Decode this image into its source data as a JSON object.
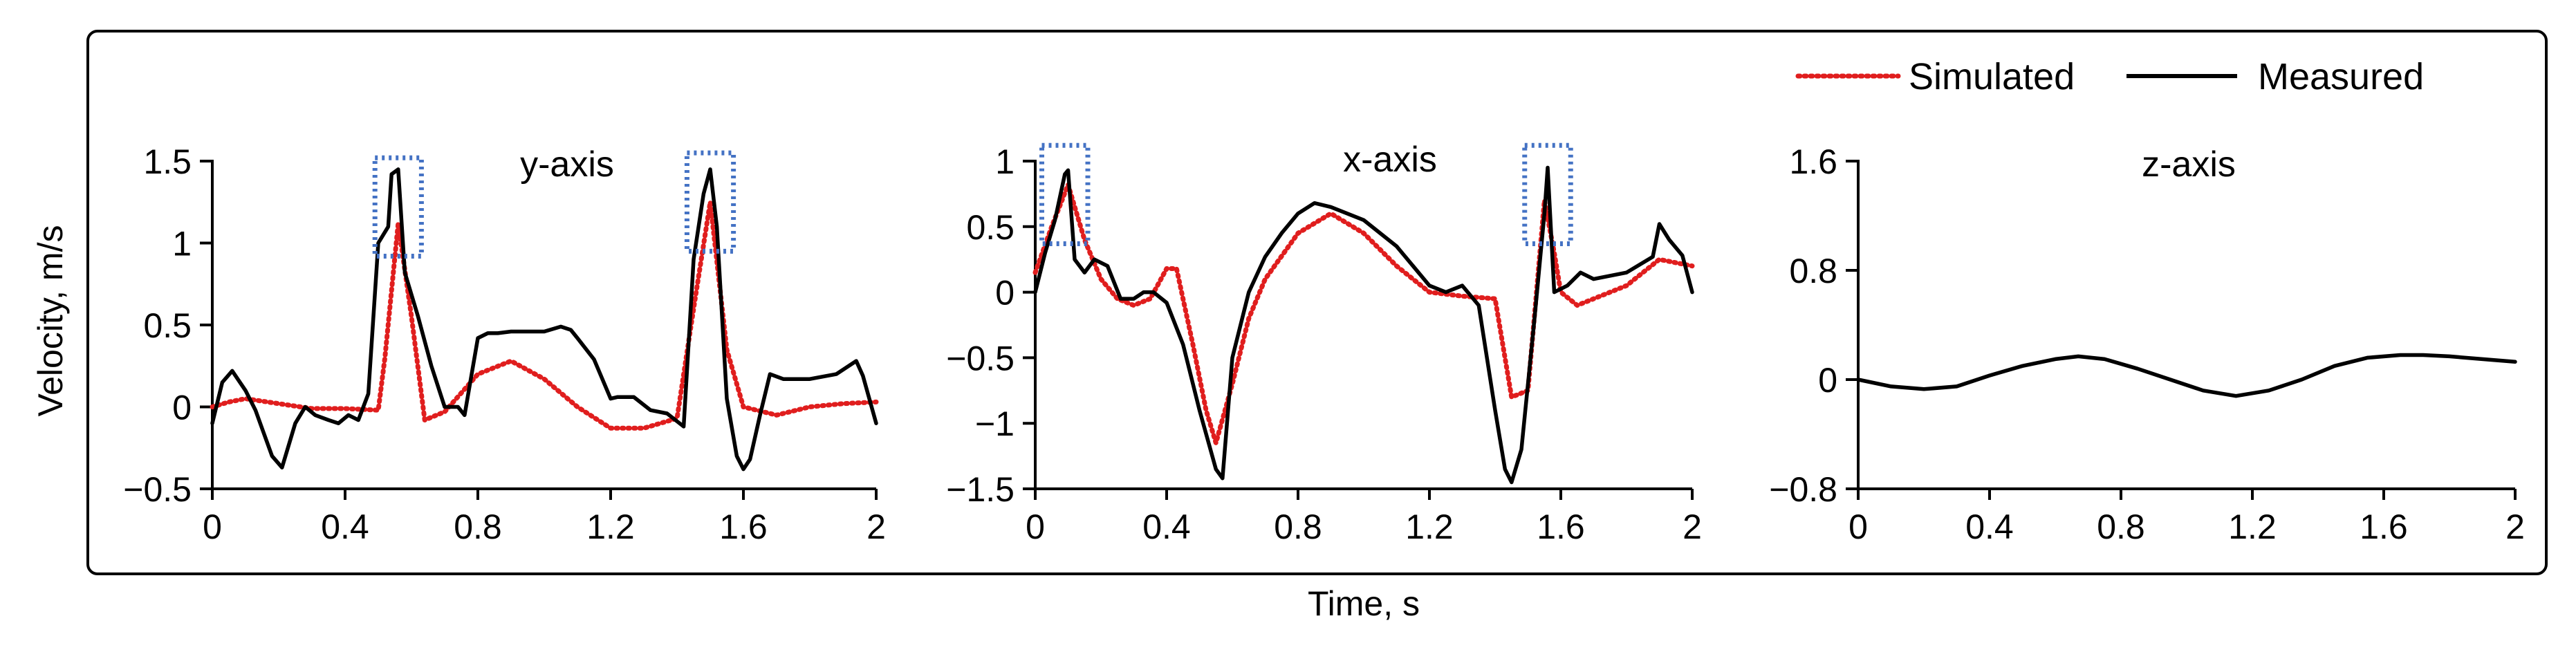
{
  "legend": {
    "simulated_label": "Simulated",
    "measured_label": "Measured"
  },
  "colors": {
    "simulated": "#e01e1e",
    "measured": "#000000",
    "highlight_box": "#4472c4",
    "frame": "#000000"
  },
  "xlabel": "Time, s",
  "ylabel": "Velocity, m/s",
  "chart_data": [
    {
      "type": "line",
      "title": "y-axis",
      "xlim": [
        0,
        2
      ],
      "ylim": [
        -0.5,
        1.5
      ],
      "xticks": [
        0,
        0.4,
        0.8,
        1.2,
        1.6,
        2
      ],
      "xticklabels": [
        "0",
        "0.4",
        "0.8",
        "1.2",
        "1.6",
        "2"
      ],
      "yticks": [
        -0.5,
        0,
        0.5,
        1,
        1.5
      ],
      "yticklabels": [
        "−0.5",
        "0",
        "0.5",
        "1",
        "1.5"
      ],
      "highlight_regions": [
        {
          "x": [
            0.49,
            0.63
          ],
          "y": [
            0.92,
            1.52
          ]
        },
        {
          "x": [
            1.43,
            1.57
          ],
          "y": [
            0.95,
            1.55
          ]
        }
      ],
      "series": [
        {
          "name": "Simulated",
          "style": "dotted",
          "x": [
            0,
            0.05,
            0.1,
            0.2,
            0.3,
            0.4,
            0.5,
            0.52,
            0.56,
            0.6,
            0.64,
            0.7,
            0.8,
            0.9,
            1.0,
            1.1,
            1.2,
            1.3,
            1.4,
            1.45,
            1.5,
            1.55,
            1.6,
            1.7,
            1.8,
            1.9,
            2.0
          ],
          "y": [
            0.0,
            0.03,
            0.05,
            0.02,
            -0.01,
            -0.01,
            -0.02,
            0.3,
            1.12,
            0.55,
            -0.08,
            -0.03,
            0.2,
            0.28,
            0.17,
            0.0,
            -0.13,
            -0.13,
            -0.07,
            0.6,
            1.25,
            0.35,
            0.0,
            -0.05,
            0.0,
            0.02,
            0.03
          ]
        },
        {
          "name": "Measured",
          "style": "solid",
          "x": [
            0,
            0.03,
            0.06,
            0.1,
            0.13,
            0.18,
            0.21,
            0.25,
            0.28,
            0.31,
            0.35,
            0.38,
            0.41,
            0.44,
            0.47,
            0.5,
            0.53,
            0.54,
            0.56,
            0.58,
            0.62,
            0.66,
            0.7,
            0.74,
            0.76,
            0.8,
            0.83,
            0.86,
            0.9,
            1.0,
            1.05,
            1.08,
            1.1,
            1.15,
            1.2,
            1.22,
            1.27,
            1.32,
            1.37,
            1.42,
            1.45,
            1.48,
            1.5,
            1.52,
            1.55,
            1.58,
            1.6,
            1.62,
            1.65,
            1.68,
            1.72,
            1.8,
            1.88,
            1.94,
            1.96,
            2.0
          ],
          "y": [
            -0.1,
            0.15,
            0.22,
            0.1,
            -0.02,
            -0.3,
            -0.37,
            -0.1,
            0.0,
            -0.05,
            -0.08,
            -0.1,
            -0.05,
            -0.08,
            0.08,
            1.0,
            1.1,
            1.42,
            1.45,
            0.82,
            0.55,
            0.25,
            0.0,
            0.0,
            -0.05,
            0.42,
            0.45,
            0.45,
            0.46,
            0.46,
            0.49,
            0.47,
            0.42,
            0.29,
            0.05,
            0.06,
            0.06,
            -0.02,
            -0.04,
            -0.12,
            0.9,
            1.3,
            1.45,
            1.1,
            0.05,
            -0.3,
            -0.38,
            -0.32,
            -0.05,
            0.2,
            0.17,
            0.17,
            0.2,
            0.28,
            0.19,
            -0.1
          ]
        }
      ]
    },
    {
      "type": "line",
      "title": "x-axis",
      "xlim": [
        0,
        2
      ],
      "ylim": [
        -1.5,
        1
      ],
      "xticks": [
        0,
        0.4,
        0.8,
        1.2,
        1.6,
        2
      ],
      "xticklabels": [
        "0",
        "0.4",
        "0.8",
        "1.2",
        "1.6",
        "2"
      ],
      "yticks": [
        -1.5,
        -1,
        -0.5,
        0,
        0.5,
        1
      ],
      "yticklabels": [
        "−1.5",
        "−1",
        "−0.5",
        "0",
        "0.5",
        "1"
      ],
      "highlight_regions": [
        {
          "x": [
            0.02,
            0.16
          ],
          "y": [
            0.37,
            1.12
          ]
        },
        {
          "x": [
            1.49,
            1.63
          ],
          "y": [
            0.37,
            1.12
          ]
        }
      ],
      "series": [
        {
          "name": "Simulated",
          "style": "dotted",
          "x": [
            0,
            0.05,
            0.1,
            0.15,
            0.2,
            0.25,
            0.3,
            0.35,
            0.4,
            0.43,
            0.48,
            0.52,
            0.55,
            0.6,
            0.65,
            0.7,
            0.8,
            0.9,
            1.0,
            1.1,
            1.2,
            1.3,
            1.4,
            1.45,
            1.5,
            1.55,
            1.58,
            1.6,
            1.65,
            1.7,
            1.8,
            1.9,
            2.0
          ],
          "y": [
            0.15,
            0.5,
            0.82,
            0.4,
            0.1,
            -0.05,
            -0.1,
            -0.05,
            0.18,
            0.18,
            -0.4,
            -0.9,
            -1.15,
            -0.7,
            -0.2,
            0.1,
            0.45,
            0.6,
            0.45,
            0.2,
            0.0,
            -0.03,
            -0.05,
            -0.8,
            -0.75,
            0.7,
            0.3,
            0.0,
            -0.1,
            -0.05,
            0.05,
            0.25,
            0.2
          ]
        },
        {
          "name": "Measured",
          "style": "solid",
          "x": [
            0,
            0.03,
            0.06,
            0.09,
            0.1,
            0.12,
            0.15,
            0.18,
            0.22,
            0.26,
            0.3,
            0.33,
            0.36,
            0.4,
            0.45,
            0.5,
            0.55,
            0.57,
            0.6,
            0.65,
            0.7,
            0.75,
            0.8,
            0.85,
            0.9,
            1.0,
            1.1,
            1.15,
            1.2,
            1.25,
            1.3,
            1.35,
            1.4,
            1.43,
            1.45,
            1.48,
            1.52,
            1.55,
            1.56,
            1.58,
            1.62,
            1.66,
            1.7,
            1.8,
            1.88,
            1.9,
            1.93,
            1.97,
            2.0
          ],
          "y": [
            0.0,
            0.3,
            0.55,
            0.9,
            0.93,
            0.25,
            0.15,
            0.25,
            0.2,
            -0.05,
            -0.05,
            0.0,
            0.0,
            -0.08,
            -0.4,
            -0.9,
            -1.35,
            -1.42,
            -0.5,
            0.0,
            0.27,
            0.45,
            0.6,
            0.68,
            0.65,
            0.55,
            0.35,
            0.2,
            0.05,
            0.0,
            0.05,
            -0.1,
            -0.9,
            -1.35,
            -1.45,
            -1.2,
            -0.2,
            0.6,
            0.95,
            0.0,
            0.05,
            0.15,
            0.1,
            0.15,
            0.27,
            0.52,
            0.4,
            0.28,
            0.0
          ]
        }
      ]
    },
    {
      "type": "line",
      "title": "z-axis",
      "xlim": [
        0,
        2
      ],
      "ylim": [
        -0.8,
        1.6
      ],
      "xticks": [
        0,
        0.4,
        0.8,
        1.2,
        1.6,
        2
      ],
      "xticklabels": [
        "0",
        "0.4",
        "0.8",
        "1.2",
        "1.6",
        "2"
      ],
      "yticks": [
        -0.8,
        0,
        0.8,
        1.6
      ],
      "yticklabels": [
        "−0.8",
        "0",
        "0.8",
        "1.6"
      ],
      "highlight_regions": [],
      "series": [
        {
          "name": "Measured",
          "style": "solid",
          "x": [
            0,
            0.1,
            0.2,
            0.3,
            0.4,
            0.5,
            0.6,
            0.67,
            0.75,
            0.85,
            0.95,
            1.05,
            1.15,
            1.25,
            1.35,
            1.45,
            1.55,
            1.65,
            1.72,
            1.8,
            1.9,
            2.0
          ],
          "y": [
            0.0,
            -0.05,
            -0.07,
            -0.05,
            0.03,
            0.1,
            0.15,
            0.17,
            0.15,
            0.08,
            0.0,
            -0.08,
            -0.12,
            -0.08,
            0.0,
            0.1,
            0.16,
            0.18,
            0.18,
            0.17,
            0.15,
            0.13
          ]
        }
      ]
    }
  ]
}
